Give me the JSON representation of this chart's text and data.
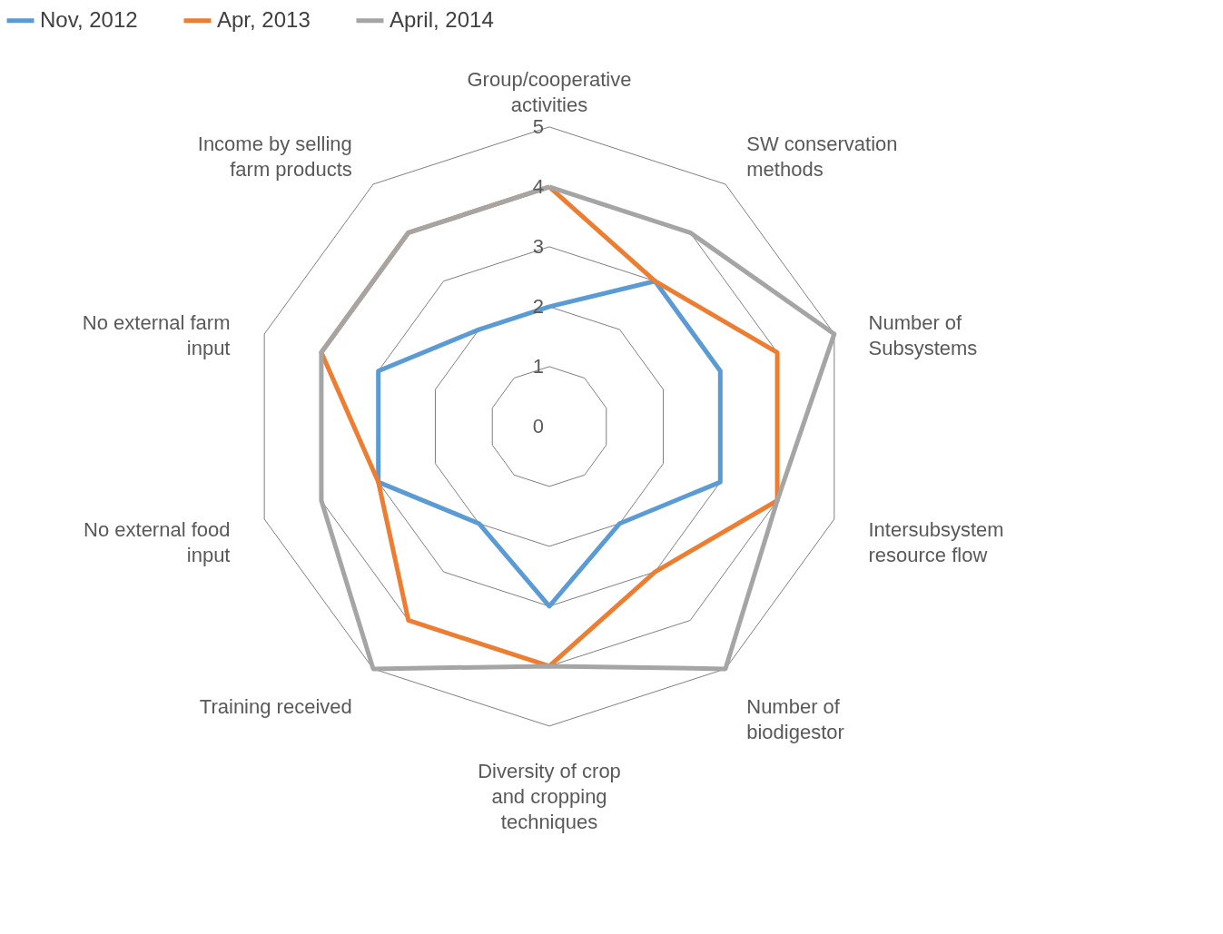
{
  "chart_data": {
    "type": "radar",
    "categories": [
      "Group/cooperative activities",
      "SW conservation methods",
      "Number of Subsystems",
      "Intersubsystem resource flow",
      "Number of biodigestor",
      "Diversity of crop and cropping techniques",
      "Training received",
      "No external food input",
      "No external farm input",
      "Income by selling farm products"
    ],
    "series": [
      {
        "name": "Nov, 2012",
        "color": "#5b9bd5",
        "values": [
          2,
          3,
          3,
          3,
          2,
          3,
          2,
          3,
          3,
          2
        ]
      },
      {
        "name": "Apr, 2013",
        "color": "#ed7d31",
        "values": [
          4,
          3,
          4,
          4,
          3,
          4,
          4,
          3,
          4,
          4
        ]
      },
      {
        "name": "April, 2014",
        "color": "#a5a5a5",
        "values": [
          4,
          4,
          5,
          4,
          5,
          4,
          5,
          4,
          4,
          4
        ]
      }
    ],
    "ylim": [
      0,
      5
    ],
    "yticks": [
      0,
      1,
      2,
      3,
      4,
      5
    ],
    "grid": true,
    "legend": "top"
  }
}
